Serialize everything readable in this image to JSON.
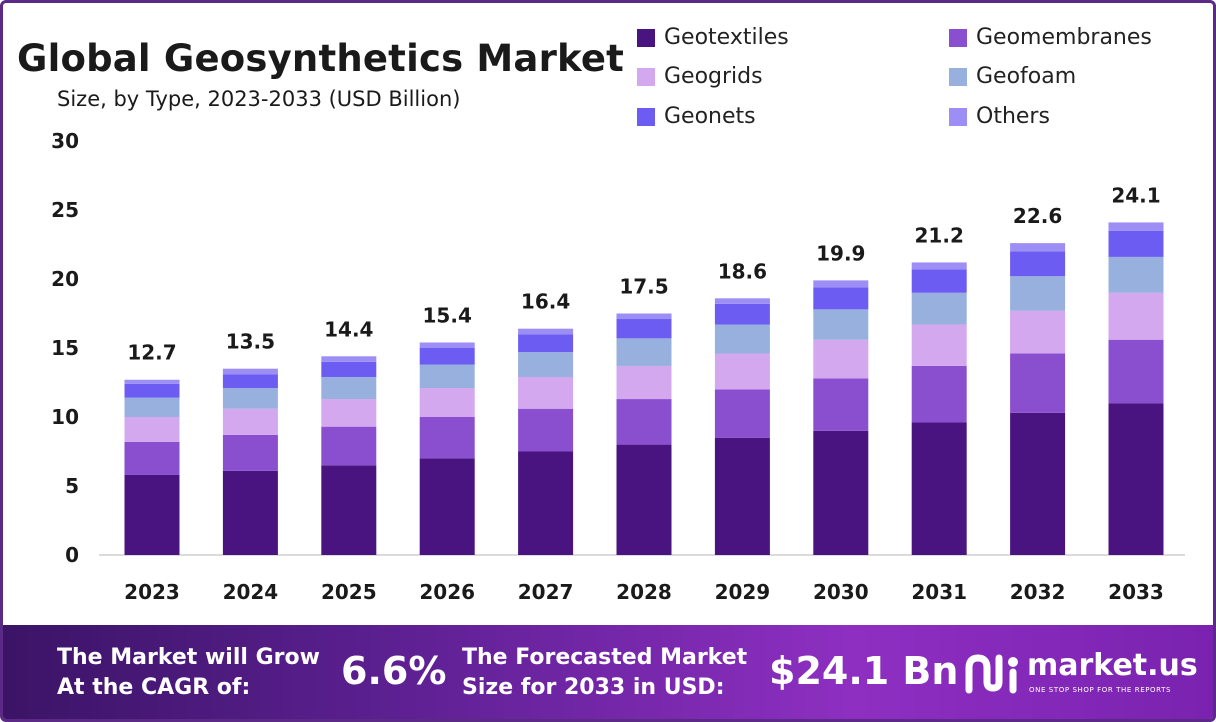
{
  "header": {
    "title": "Global Geosynthetics Market",
    "subtitle": "Size, by Type, 2023-2033 (USD Billion)"
  },
  "chart_data": {
    "type": "bar",
    "stacked": true,
    "categories": [
      "2023",
      "2024",
      "2025",
      "2026",
      "2027",
      "2028",
      "2029",
      "2030",
      "2031",
      "2032",
      "2033"
    ],
    "totals": [
      "12.7",
      "13.5",
      "14.4",
      "15.4",
      "16.4",
      "17.5",
      "18.6",
      "19.9",
      "21.2",
      "22.6",
      "24.1"
    ],
    "series": [
      {
        "name": "Geotextiles",
        "color": "#4a1480",
        "values": [
          5.8,
          6.1,
          6.5,
          7.0,
          7.5,
          8.0,
          8.5,
          9.0,
          9.6,
          10.3,
          11.0
        ]
      },
      {
        "name": "Geomembranes",
        "color": "#8a4fcf",
        "values": [
          2.4,
          2.6,
          2.8,
          3.0,
          3.1,
          3.3,
          3.5,
          3.8,
          4.1,
          4.3,
          4.6
        ]
      },
      {
        "name": "Geogrids",
        "color": "#d4a8ef",
        "values": [
          1.8,
          1.9,
          2.0,
          2.1,
          2.3,
          2.4,
          2.6,
          2.8,
          3.0,
          3.1,
          3.4
        ]
      },
      {
        "name": "Geofoam",
        "color": "#98b0de",
        "values": [
          1.4,
          1.5,
          1.6,
          1.7,
          1.8,
          2.0,
          2.1,
          2.2,
          2.3,
          2.5,
          2.6
        ]
      },
      {
        "name": "Geonets",
        "color": "#6d5cf2",
        "values": [
          1.0,
          1.0,
          1.1,
          1.2,
          1.3,
          1.4,
          1.5,
          1.6,
          1.7,
          1.8,
          1.9
        ]
      },
      {
        "name": "Others",
        "color": "#9d8ef5",
        "values": [
          0.3,
          0.4,
          0.4,
          0.4,
          0.4,
          0.4,
          0.4,
          0.5,
          0.5,
          0.6,
          0.6
        ]
      }
    ],
    "yticks": [
      "0",
      "5",
      "10",
      "15",
      "20",
      "25",
      "30"
    ],
    "ylim": [
      0,
      30
    ],
    "grid": false,
    "legend_position": "top-right"
  },
  "footer": {
    "cagr_label_line1": "The Market will Grow",
    "cagr_label_line2": "At the CAGR of:",
    "cagr_value": "6.6%",
    "forecast_label_line1": "The Forecasted Market",
    "forecast_label_line2": "Size for 2033 in USD:",
    "forecast_value": "$24.1 Bn",
    "brand_name": "market.us",
    "brand_tagline": "ONE STOP SHOP FOR THE REPORTS"
  }
}
